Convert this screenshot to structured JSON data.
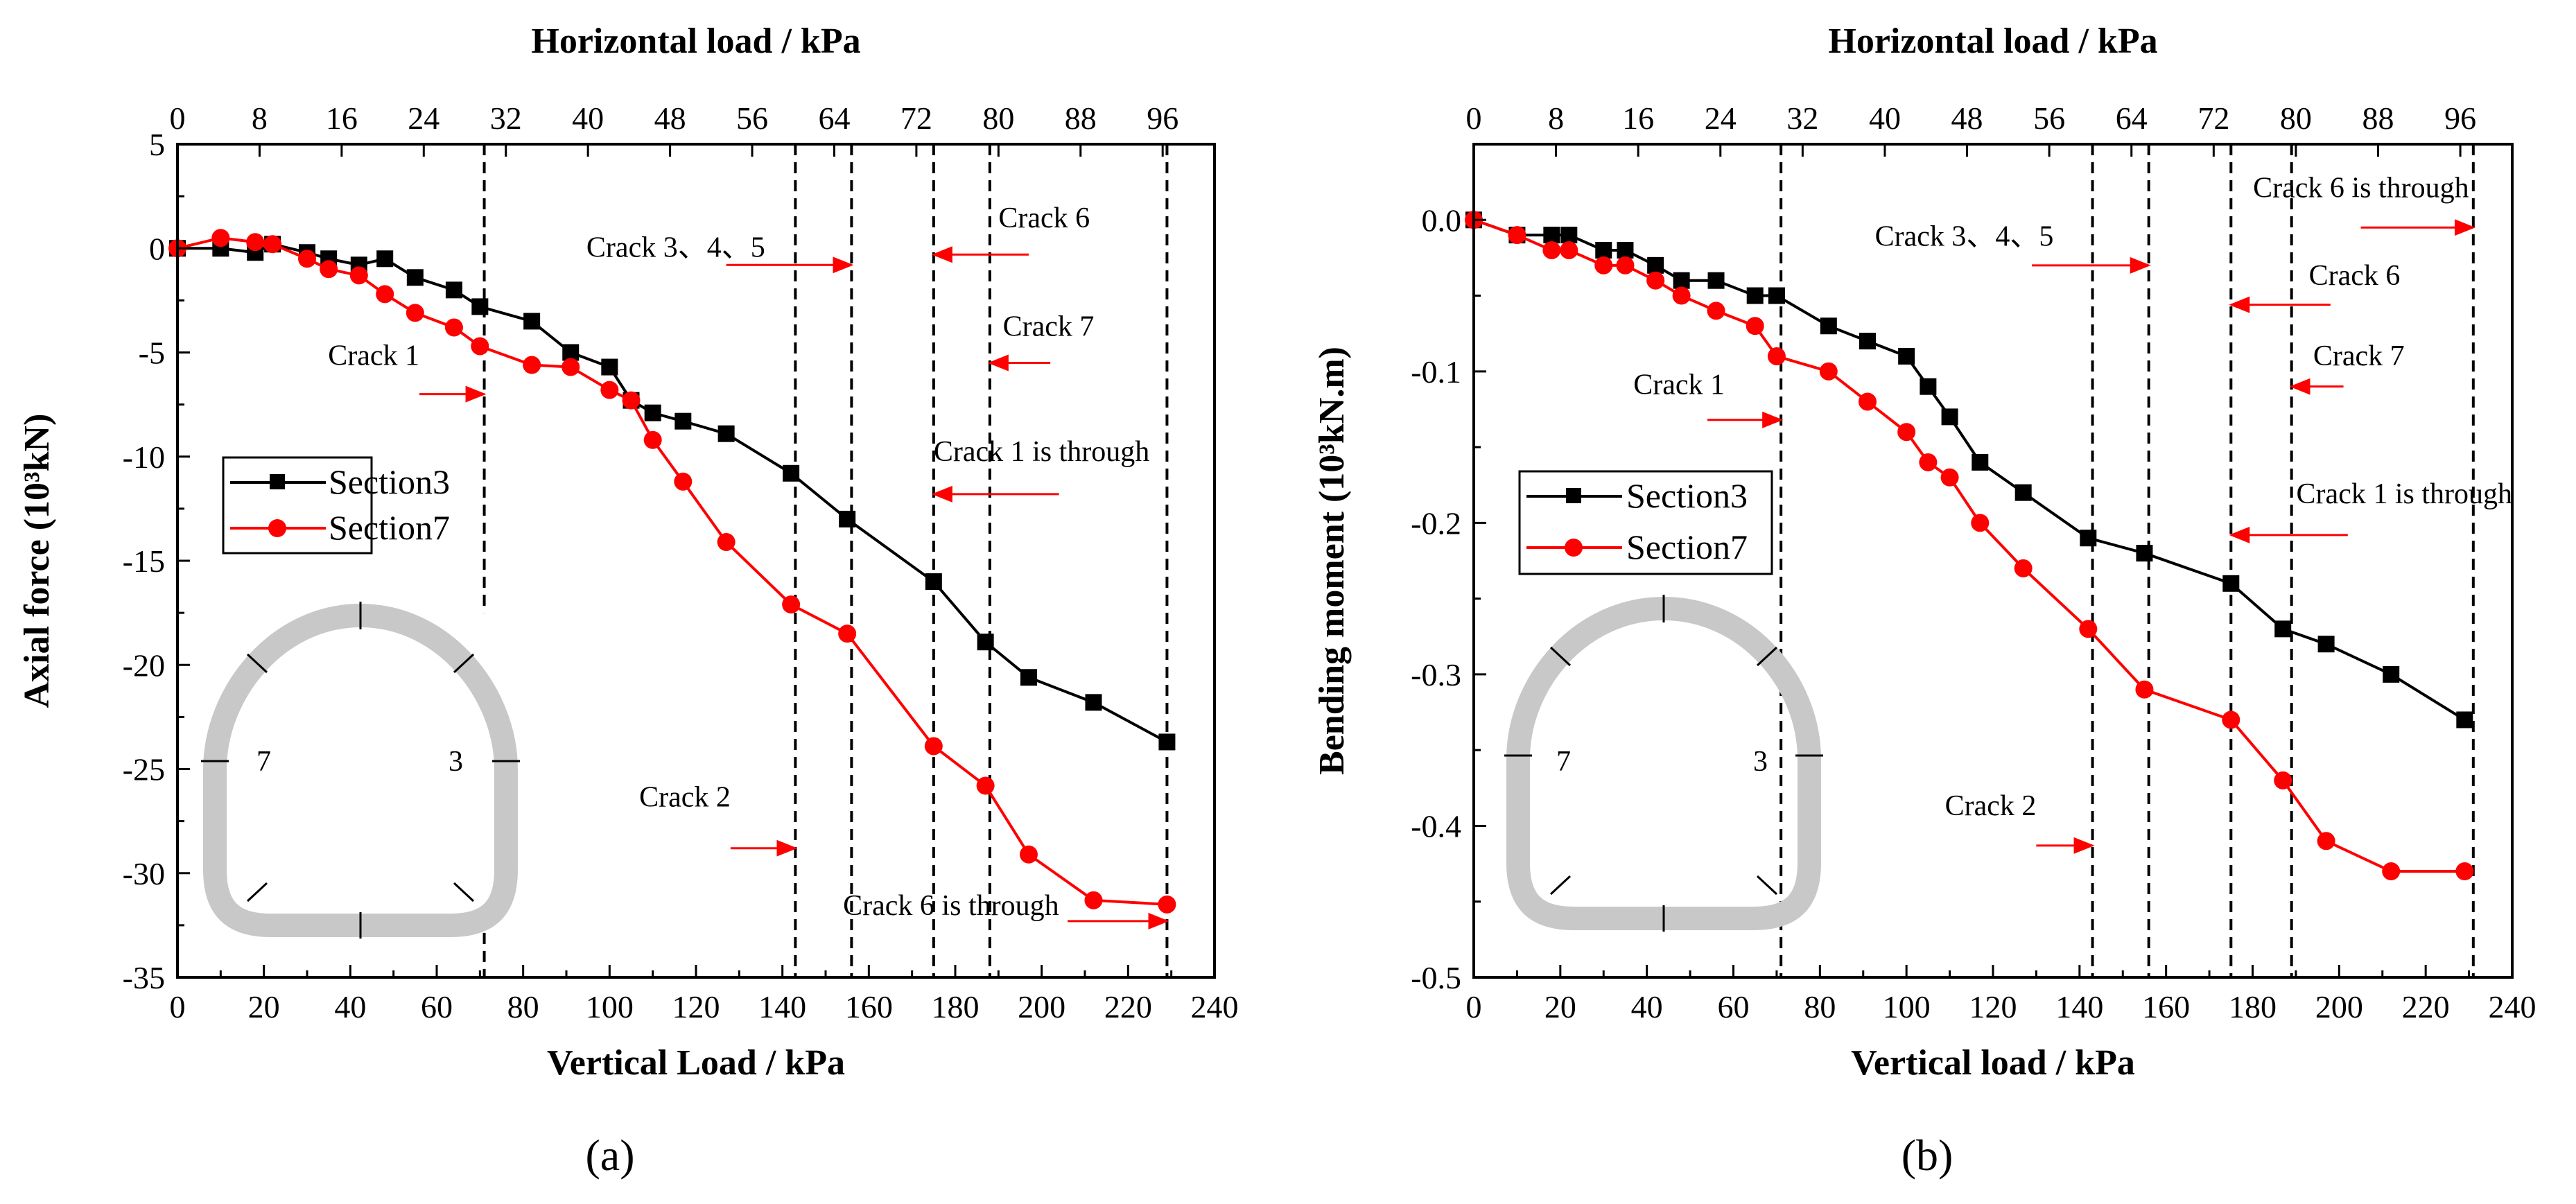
{
  "colors": {
    "section3": "#000000",
    "section7": "#ff0000",
    "arrow": "#ff0000",
    "ring": "#c8c8c8"
  },
  "chart_data": [
    {
      "type": "line",
      "panel_label": "(a)",
      "xlabel": "Vertical Load / kPa",
      "x2label": "Horizontal load / kPa",
      "ylabel": "Axial force (10³kN)",
      "xlim": [
        0,
        240
      ],
      "ylim": [
        -35,
        5
      ],
      "xticks": [
        0,
        20,
        40,
        60,
        80,
        100,
        120,
        140,
        160,
        180,
        200,
        220,
        240
      ],
      "yticks": [
        5,
        0,
        -5,
        -10,
        -15,
        -20,
        -25,
        -30,
        -35
      ],
      "x2ticks": [
        0,
        8,
        16,
        24,
        32,
        40,
        48,
        56,
        64,
        72,
        80,
        88,
        96
      ],
      "legend_position": "left",
      "series": [
        {
          "name": "Section3",
          "x": [
            0,
            10,
            18,
            22,
            30,
            35,
            42,
            48,
            55,
            64,
            70,
            82,
            91,
            100,
            105,
            110,
            117,
            127,
            142,
            155,
            175,
            187,
            197,
            212,
            229
          ],
          "y": [
            0,
            0,
            -0.2,
            0.2,
            -0.2,
            -0.5,
            -0.8,
            -0.5,
            -1.4,
            -2.0,
            -2.8,
            -3.5,
            -5.0,
            -5.7,
            -7.3,
            -7.9,
            -8.3,
            -8.9,
            -10.8,
            -13.0,
            -16.0,
            -18.9,
            -20.6,
            -21.8,
            -23.7
          ]
        },
        {
          "name": "Section7",
          "x": [
            0,
            10,
            18,
            22,
            30,
            35,
            42,
            48,
            55,
            64,
            70,
            82,
            91,
            100,
            105,
            110,
            117,
            127,
            142,
            155,
            175,
            187,
            197,
            212,
            229
          ],
          "y": [
            0,
            0.5,
            0.3,
            0.2,
            -0.5,
            -1.0,
            -1.3,
            -2.2,
            -3.1,
            -3.8,
            -4.7,
            -5.6,
            -5.7,
            -6.8,
            -7.3,
            -9.2,
            -11.2,
            -14.1,
            -17.1,
            -18.5,
            -23.9,
            -25.8,
            -29.1,
            -31.3,
            -31.5
          ]
        }
      ],
      "vlines": [
        {
          "x": 71,
          "ymin": -17.5,
          "ymax": 5
        },
        {
          "x": 71,
          "ymin": -35,
          "ymax": -32
        },
        {
          "x": 143,
          "ymin": -35,
          "ymax": 5
        },
        {
          "x": 156,
          "ymin": -35,
          "ymax": 5
        },
        {
          "x": 175,
          "ymin": -35,
          "ymax": 5
        },
        {
          "x": 188,
          "ymin": -35,
          "ymax": 5
        },
        {
          "x": 229,
          "ymin": -35,
          "ymax": 5
        }
      ],
      "annotations": [
        {
          "text": "Crack 3、4、5",
          "x": 136,
          "y": -0.4,
          "anchor": "end",
          "arrow_from": [
            127,
            -0.8
          ],
          "arrow_to": [
            156,
            -0.8
          ]
        },
        {
          "text": "Crack 6",
          "x": 190,
          "y": 1.0,
          "anchor": "start",
          "arrow_from": [
            197,
            -0.3
          ],
          "arrow_to": [
            175,
            -0.3
          ]
        },
        {
          "text": "Crack 7",
          "x": 191,
          "y": -4.2,
          "anchor": "start",
          "arrow_from": [
            202,
            -5.5
          ],
          "arrow_to": [
            188,
            -5.5
          ]
        },
        {
          "text": "Crack 1",
          "x": 56,
          "y": -5.6,
          "anchor": "end",
          "arrow_from": [
            56,
            -7.0
          ],
          "arrow_to": [
            71,
            -7.0
          ]
        },
        {
          "text": "Crack 1  is through",
          "x": 175,
          "y": -10.2,
          "anchor": "start",
          "arrow_from": [
            204,
            -11.8
          ],
          "arrow_to": [
            175,
            -11.8
          ]
        },
        {
          "text": "Crack 2",
          "x": 128,
          "y": -26.8,
          "anchor": "end",
          "arrow_from": [
            128,
            -28.8
          ],
          "arrow_to": [
            143,
            -28.8
          ]
        },
        {
          "text": "Crack 6 is through",
          "x": 204,
          "y": -32.0,
          "anchor": "end",
          "arrow_from": [
            206,
            -32.3
          ],
          "arrow_to": [
            229,
            -32.3
          ]
        }
      ],
      "inset_labels": [
        "7",
        "3"
      ]
    },
    {
      "type": "line",
      "panel_label": "(b)",
      "xlabel": "Vertical load / kPa",
      "x2label": "Horizontal load / kPa",
      "ylabel": "Bending moment (10³kN.m)",
      "xlim": [
        0,
        240
      ],
      "ylim": [
        -0.5,
        0.05
      ],
      "xticks": [
        0,
        20,
        40,
        60,
        80,
        100,
        120,
        140,
        160,
        180,
        200,
        220,
        240
      ],
      "yticks": [
        0.0,
        -0.1,
        -0.2,
        -0.3,
        -0.4,
        -0.5
      ],
      "ytick_labels": [
        "0.0",
        "-0.1",
        "-0.2",
        "-0.3",
        "-0.4",
        "-0.5"
      ],
      "x2ticks": [
        0,
        8,
        16,
        24,
        32,
        40,
        48,
        56,
        64,
        72,
        80,
        88,
        96
      ],
      "legend_position": "left",
      "series": [
        {
          "name": "Section3",
          "x": [
            0,
            10,
            18,
            22,
            30,
            35,
            42,
            48,
            56,
            65,
            70,
            82,
            91,
            100,
            105,
            110,
            117,
            127,
            142,
            155,
            175,
            187,
            197,
            212,
            229
          ],
          "y": [
            0,
            -0.01,
            -0.01,
            -0.01,
            -0.02,
            -0.02,
            -0.03,
            -0.04,
            -0.04,
            -0.05,
            -0.05,
            -0.07,
            -0.08,
            -0.09,
            -0.11,
            -0.13,
            -0.16,
            -0.18,
            -0.21,
            -0.22,
            -0.24,
            -0.27,
            -0.28,
            -0.3,
            -0.33
          ]
        },
        {
          "name": "Section7",
          "x": [
            0,
            10,
            18,
            22,
            30,
            35,
            42,
            48,
            56,
            65,
            70,
            82,
            91,
            100,
            105,
            110,
            117,
            127,
            142,
            155,
            175,
            187,
            197,
            212,
            229
          ],
          "y": [
            0,
            -0.01,
            -0.02,
            -0.02,
            -0.03,
            -0.03,
            -0.04,
            -0.05,
            -0.06,
            -0.07,
            -0.09,
            -0.1,
            -0.12,
            -0.14,
            -0.16,
            -0.17,
            -0.2,
            -0.23,
            -0.27,
            -0.31,
            -0.33,
            -0.37,
            -0.41,
            -0.43,
            -0.43
          ]
        }
      ],
      "vlines": [
        {
          "x": 71,
          "ymin": -0.5,
          "ymax": 0.05
        },
        {
          "x": 143,
          "ymin": -0.5,
          "ymax": 0.05
        },
        {
          "x": 156,
          "ymin": -0.5,
          "ymax": 0.05
        },
        {
          "x": 175,
          "ymin": -0.5,
          "ymax": 0.05
        },
        {
          "x": 189,
          "ymin": -0.5,
          "ymax": 0.05
        },
        {
          "x": 231,
          "ymin": -0.5,
          "ymax": 0.05
        }
      ],
      "annotations": [
        {
          "text": "Crack 6  is through",
          "x": 230,
          "y": 0.015,
          "anchor": "end",
          "arrow_from": [
            205,
            -0.005
          ],
          "arrow_to": [
            231,
            -0.005
          ]
        },
        {
          "text": "Crack 3、4、5",
          "x": 134,
          "y": -0.017,
          "anchor": "end",
          "arrow_from": [
            129,
            -0.03
          ],
          "arrow_to": [
            156,
            -0.03
          ]
        },
        {
          "text": "Crack 6",
          "x": 193,
          "y": -0.043,
          "anchor": "start",
          "arrow_from": [
            198,
            -0.056
          ],
          "arrow_to": [
            175,
            -0.056
          ]
        },
        {
          "text": "Crack 7",
          "x": 194,
          "y": -0.096,
          "anchor": "start",
          "arrow_from": [
            201,
            -0.11
          ],
          "arrow_to": [
            189,
            -0.11
          ]
        },
        {
          "text": "Crack 1",
          "x": 58,
          "y": -0.115,
          "anchor": "end",
          "arrow_from": [
            54,
            -0.132
          ],
          "arrow_to": [
            71,
            -0.132
          ]
        },
        {
          "text": "Crack 1 is through",
          "x": 240,
          "y": -0.187,
          "anchor": "end",
          "arrow_from": [
            202,
            -0.208
          ],
          "arrow_to": [
            175,
            -0.208
          ]
        },
        {
          "text": "Crack 2",
          "x": 130,
          "y": -0.393,
          "anchor": "end",
          "arrow_from": [
            130,
            -0.413
          ],
          "arrow_to": [
            143,
            -0.413
          ]
        }
      ],
      "inset_labels": [
        "7",
        "3"
      ]
    }
  ]
}
